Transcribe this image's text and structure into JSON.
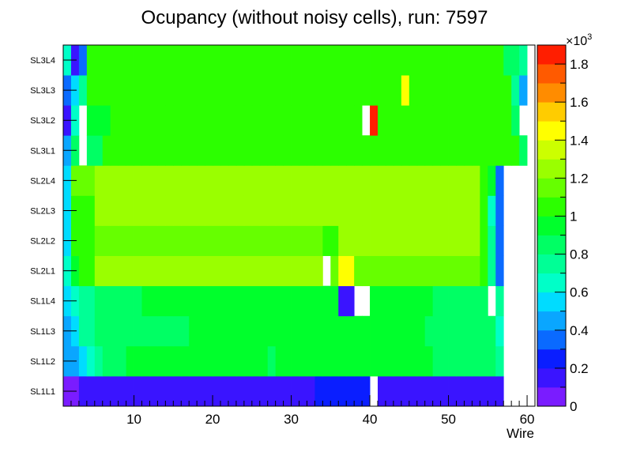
{
  "chart_data": {
    "type": "heatmap",
    "title": "Ocupancy (without noisy cells), run: 7597",
    "xlabel": "Wire",
    "ylabel": "",
    "xlim": [
      1,
      61
    ],
    "x_ticks": [
      "10",
      "20",
      "30",
      "40",
      "50",
      "60"
    ],
    "y_categories": [
      "SL1L1",
      "SL1L2",
      "SL1L3",
      "SL1L4",
      "SL2L1",
      "SL2L2",
      "SL2L3",
      "SL2L4",
      "SL3L1",
      "SL3L2",
      "SL3L3",
      "SL3L4"
    ],
    "colorbar": {
      "exponent_label": "×10",
      "exponent_power": "3",
      "min": 0,
      "max": 1.9,
      "tick_labels": [
        "0",
        "0.2",
        "0.4",
        "0.6",
        "0.8",
        "1",
        "1.2",
        "1.4",
        "1.6",
        "1.8"
      ],
      "palette": [
        "#7a1cff",
        "#3a14ff",
        "#0a1eff",
        "#0a6aff",
        "#0aa6ff",
        "#00dcff",
        "#00ffc8",
        "#00ff96",
        "#00ff64",
        "#00ff2c",
        "#2cff00",
        "#66ff00",
        "#9aff00",
        "#ccff00",
        "#ffff00",
        "#ffcc00",
        "#ff8c00",
        "#ff5a00",
        "#ff1e00"
      ]
    },
    "rows": [
      {
        "layer": "SL1L1",
        "segments": [
          {
            "from": 1,
            "to": 2,
            "value": 0.08
          },
          {
            "from": 3,
            "to": 6,
            "value": 0.1
          },
          {
            "from": 7,
            "to": 13,
            "value": 0.17
          },
          {
            "from": 14,
            "to": 14,
            "value": 0.1
          },
          {
            "from": 15,
            "to": 15,
            "value": 0.17
          },
          {
            "from": 16,
            "to": 23,
            "value": 0.1
          },
          {
            "from": 24,
            "to": 24,
            "value": 0.17
          },
          {
            "from": 25,
            "to": 26,
            "value": 0.1
          },
          {
            "from": 27,
            "to": 28,
            "value": 0.17
          },
          {
            "from": 29,
            "to": 30,
            "value": 0.1
          },
          {
            "from": 31,
            "to": 32,
            "value": 0.17
          },
          {
            "from": 33,
            "to": 39,
            "value": 0.25
          },
          {
            "from": 41,
            "to": 44,
            "value": 0.17
          },
          {
            "from": 45,
            "to": 56,
            "value": 0.1
          }
        ]
      },
      {
        "layer": "SL1L2",
        "segments": [
          {
            "from": 1,
            "to": 2,
            "value": 0.45
          },
          {
            "from": 3,
            "to": 3,
            "value": 0.55
          },
          {
            "from": 4,
            "to": 4,
            "value": 0.6
          },
          {
            "from": 5,
            "to": 5,
            "value": 0.75
          },
          {
            "from": 6,
            "to": 8,
            "value": 0.85
          },
          {
            "from": 9,
            "to": 26,
            "value": 0.92
          },
          {
            "from": 27,
            "to": 27,
            "value": 0.85
          },
          {
            "from": 28,
            "to": 47,
            "value": 0.95
          },
          {
            "from": 48,
            "to": 55,
            "value": 0.82
          },
          {
            "from": 56,
            "to": 56,
            "value": 0.7
          }
        ]
      },
      {
        "layer": "SL1L3",
        "segments": [
          {
            "from": 1,
            "to": 1,
            "value": 0.45
          },
          {
            "from": 2,
            "to": 2,
            "value": 0.55
          },
          {
            "from": 3,
            "to": 4,
            "value": 0.75
          },
          {
            "from": 5,
            "to": 10,
            "value": 0.82
          },
          {
            "from": 11,
            "to": 16,
            "value": 0.88
          },
          {
            "from": 17,
            "to": 33,
            "value": 0.92
          },
          {
            "from": 34,
            "to": 46,
            "value": 0.98
          },
          {
            "from": 47,
            "to": 55,
            "value": 0.82
          },
          {
            "from": 56,
            "to": 56,
            "value": 0.6
          }
        ]
      },
      {
        "layer": "SL1L4",
        "segments": [
          {
            "from": 1,
            "to": 1,
            "value": 0.55
          },
          {
            "from": 2,
            "to": 2,
            "value": 0.65
          },
          {
            "from": 3,
            "to": 4,
            "value": 0.75
          },
          {
            "from": 5,
            "to": 10,
            "value": 0.82
          },
          {
            "from": 11,
            "to": 35,
            "value": 0.92
          },
          {
            "from": 36,
            "to": 37,
            "value": 0.12
          },
          {
            "from": 40,
            "to": 47,
            "value": 0.95
          },
          {
            "from": 48,
            "to": 54,
            "value": 0.82
          },
          {
            "from": 56,
            "to": 56,
            "value": 0.7
          }
        ]
      },
      {
        "layer": "SL2L1",
        "segments": [
          {
            "from": 1,
            "to": 1,
            "value": 0.6
          },
          {
            "from": 2,
            "to": 2,
            "value": 0.95
          },
          {
            "from": 3,
            "to": 4,
            "value": 1.05
          },
          {
            "from": 5,
            "to": 33,
            "value": 1.2
          },
          {
            "from": 35,
            "to": 35,
            "value": 1.1
          },
          {
            "from": 36,
            "to": 37,
            "value": 1.4
          },
          {
            "from": 38,
            "to": 53,
            "value": 1.15
          },
          {
            "from": 54,
            "to": 54,
            "value": 1.05
          },
          {
            "from": 55,
            "to": 55,
            "value": 0.7
          },
          {
            "from": 56,
            "to": 56,
            "value": 0.3
          }
        ]
      },
      {
        "layer": "SL2L2",
        "segments": [
          {
            "from": 1,
            "to": 1,
            "value": 0.55
          },
          {
            "from": 2,
            "to": 4,
            "value": 1.05
          },
          {
            "from": 5,
            "to": 33,
            "value": 1.18
          },
          {
            "from": 34,
            "to": 35,
            "value": 1.0
          },
          {
            "from": 36,
            "to": 53,
            "value": 1.22
          },
          {
            "from": 54,
            "to": 54,
            "value": 1.05
          },
          {
            "from": 55,
            "to": 55,
            "value": 0.75
          },
          {
            "from": 56,
            "to": 56,
            "value": 0.3
          }
        ]
      },
      {
        "layer": "SL2L3",
        "segments": [
          {
            "from": 1,
            "to": 1,
            "value": 0.5
          },
          {
            "from": 2,
            "to": 4,
            "value": 1.08
          },
          {
            "from": 5,
            "to": 53,
            "value": 1.22
          },
          {
            "from": 54,
            "to": 54,
            "value": 1.05
          },
          {
            "from": 55,
            "to": 55,
            "value": 0.6
          },
          {
            "from": 56,
            "to": 56,
            "value": 0.3
          }
        ]
      },
      {
        "layer": "SL2L4",
        "segments": [
          {
            "from": 1,
            "to": 1,
            "value": 0.5
          },
          {
            "from": 2,
            "to": 4,
            "value": 1.1
          },
          {
            "from": 5,
            "to": 53,
            "value": 1.24
          },
          {
            "from": 54,
            "to": 54,
            "value": 1.05
          },
          {
            "from": 55,
            "to": 55,
            "value": 0.9
          },
          {
            "from": 56,
            "to": 56,
            "value": 0.3
          }
        ]
      },
      {
        "layer": "SL3L1",
        "segments": [
          {
            "from": 1,
            "to": 1,
            "value": 0.45
          },
          {
            "from": 2,
            "to": 2,
            "value": 0.85
          },
          {
            "from": 4,
            "to": 5,
            "value": 0.88
          },
          {
            "from": 6,
            "to": 58,
            "value": 1.02
          },
          {
            "from": 59,
            "to": 59,
            "value": 0.85
          }
        ]
      },
      {
        "layer": "SL3L2",
        "segments": [
          {
            "from": 1,
            "to": 1,
            "value": 0.15
          },
          {
            "from": 2,
            "to": 2,
            "value": 0.6
          },
          {
            "from": 4,
            "to": 6,
            "value": 0.95
          },
          {
            "from": 7,
            "to": 38,
            "value": 1.05
          },
          {
            "from": 40,
            "to": 40,
            "value": 1.88
          },
          {
            "from": 41,
            "to": 57,
            "value": 1.05
          },
          {
            "from": 58,
            "to": 58,
            "value": 0.85
          }
        ]
      },
      {
        "layer": "SL3L3",
        "segments": [
          {
            "from": 1,
            "to": 1,
            "value": 0.35
          },
          {
            "from": 2,
            "to": 2,
            "value": 0.55
          },
          {
            "from": 3,
            "to": 3,
            "value": 0.75
          },
          {
            "from": 4,
            "to": 43,
            "value": 1.02
          },
          {
            "from": 44,
            "to": 44,
            "value": 1.4
          },
          {
            "from": 45,
            "to": 57,
            "value": 1.02
          },
          {
            "from": 58,
            "to": 58,
            "value": 0.75
          },
          {
            "from": 59,
            "to": 59,
            "value": 0.45
          }
        ]
      },
      {
        "layer": "SL3L4",
        "segments": [
          {
            "from": 1,
            "to": 1,
            "value": 0.6
          },
          {
            "from": 2,
            "to": 2,
            "value": 0.15
          },
          {
            "from": 3,
            "to": 3,
            "value": 0.3
          },
          {
            "from": 4,
            "to": 56,
            "value": 1.05
          },
          {
            "from": 57,
            "to": 58,
            "value": 0.8
          },
          {
            "from": 59,
            "to": 59,
            "value": 0.7
          }
        ]
      }
    ]
  }
}
